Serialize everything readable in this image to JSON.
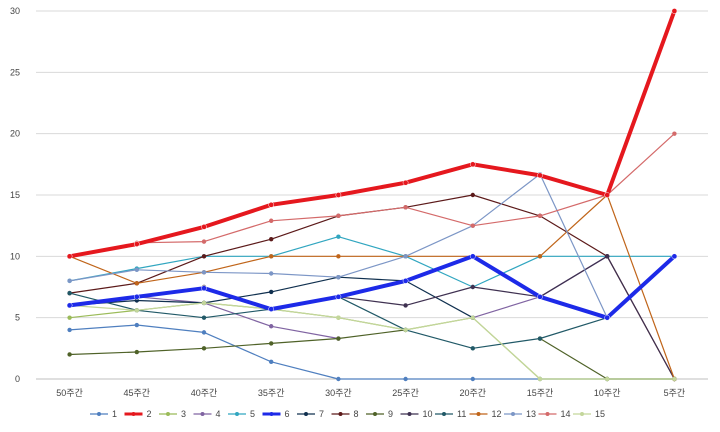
{
  "chart_data": {
    "type": "line",
    "title": "",
    "xlabel": "",
    "ylabel": "",
    "categories": [
      "50주간",
      "45주간",
      "40주간",
      "35주간",
      "30주간",
      "25주간",
      "20주간",
      "15주간",
      "10주간",
      "5주간"
    ],
    "ylim": [
      0,
      30
    ],
    "yticks": [
      "0",
      "5",
      "10",
      "15",
      "20",
      "25",
      "30"
    ],
    "grid": "horizontal",
    "legend": "bottom",
    "series": [
      {
        "name": "1",
        "color": "#4f7fbf",
        "width": 1.2,
        "values": [
          4,
          4.4,
          3.8,
          1.4,
          0,
          0,
          0,
          0,
          0,
          0
        ]
      },
      {
        "name": "2",
        "color": "#e5181e",
        "width": 4,
        "values": [
          10,
          11,
          12.4,
          14.2,
          15,
          16,
          17.5,
          16.6,
          15,
          30
        ]
      },
      {
        "name": "3",
        "color": "#9bbb59",
        "width": 1.2,
        "values": [
          5,
          5.6,
          6.2,
          5.7,
          5,
          4,
          5,
          0,
          0,
          0
        ]
      },
      {
        "name": "4",
        "color": "#8064a2",
        "width": 1.2,
        "values": [
          6,
          6.7,
          6.2,
          4.3,
          3.3,
          null,
          5,
          6.7,
          10,
          null
        ]
      },
      {
        "name": "5",
        "color": "#31a6c0",
        "width": 1.2,
        "values": [
          8,
          9,
          10,
          10,
          11.6,
          10,
          7.5,
          10,
          10,
          10
        ]
      },
      {
        "name": "6",
        "color": "#1d2ae8",
        "width": 4,
        "values": [
          6,
          6.7,
          7.4,
          5.7,
          6.7,
          8,
          10,
          6.7,
          5,
          10
        ]
      },
      {
        "name": "7",
        "color": "#10304f",
        "width": 1.2,
        "values": [
          6,
          6.4,
          6.2,
          7.1,
          8.3,
          8,
          5,
          null,
          null,
          null
        ]
      },
      {
        "name": "8",
        "color": "#5c1a1a",
        "width": 1.2,
        "values": [
          7,
          7.8,
          10,
          11.4,
          13.3,
          14,
          15,
          13.3,
          10,
          0
        ]
      },
      {
        "name": "9",
        "color": "#4f6228",
        "width": 1.2,
        "values": [
          2,
          2.2,
          2.5,
          2.9,
          3.3,
          4,
          null,
          3.3,
          0,
          0
        ]
      },
      {
        "name": "10",
        "color": "#3f3151",
        "width": 1.2,
        "values": [
          null,
          null,
          7.5,
          5.7,
          6.7,
          6,
          7.5,
          6.7,
          10,
          0
        ]
      },
      {
        "name": "11",
        "color": "#215967",
        "width": 1.2,
        "values": [
          7,
          5.6,
          5,
          5.7,
          6.7,
          4,
          2.5,
          3.3,
          5,
          null
        ]
      },
      {
        "name": "12",
        "color": "#c0651a",
        "width": 1.2,
        "values": [
          10,
          7.8,
          8.7,
          10,
          10,
          10,
          10,
          10,
          15,
          0
        ]
      },
      {
        "name": "13",
        "color": "#7c96c6",
        "width": 1.2,
        "values": [
          8,
          8.9,
          8.7,
          8.6,
          8.3,
          10,
          12.5,
          16.7,
          5,
          null
        ]
      },
      {
        "name": "14",
        "color": "#d46a6a",
        "width": 1.2,
        "values": [
          10,
          11.1,
          11.2,
          12.9,
          13.3,
          14,
          12.5,
          13.3,
          15,
          20
        ]
      },
      {
        "name": "15",
        "color": "#c3d69b",
        "width": 1.2,
        "values": [
          6,
          5.6,
          6.2,
          5.7,
          5,
          4,
          5,
          0,
          0,
          0
        ]
      }
    ]
  }
}
